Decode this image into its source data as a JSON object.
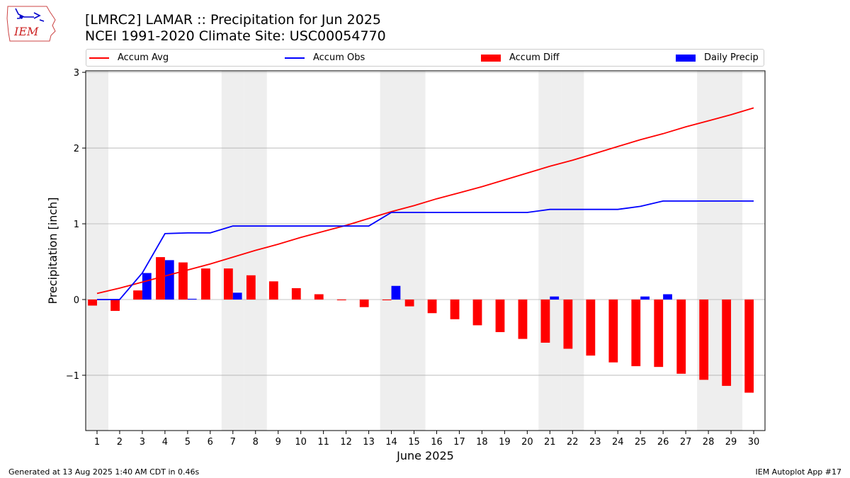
{
  "header": {
    "title_line1": "[LMRC2] LAMAR :: Precipitation for Jun 2025",
    "title_line2": "NCEI 1991-2020 Climate Site: USC00054770",
    "logo_text": "IEM"
  },
  "legend": {
    "accum_avg": "Accum Avg",
    "accum_obs": "Accum Obs",
    "accum_diff": "Accum Diff",
    "daily_precip": "Daily Precip"
  },
  "footer": {
    "generated": "Generated at 13 Aug 2025 1:40 AM CDT in 0.46s",
    "app": "IEM Autoplot App #17"
  },
  "colors": {
    "accum_avg": "#ff0000",
    "accum_obs": "#0000ff",
    "accum_diff": "#ff0000",
    "daily_precip": "#0000ff",
    "weekend_shade": "#eeeeee",
    "grid": "#b0b0b0"
  },
  "chart_data": {
    "type": "bar",
    "title": "[LMRC2] LAMAR :: Precipitation for Jun 2025",
    "subtitle": "NCEI 1991-2020 Climate Site: USC00054770",
    "xlabel": "June 2025",
    "ylabel": "Precipitation [inch]",
    "ylim": [
      -1.73,
      3.02
    ],
    "yticks": [
      -1,
      0,
      1,
      2,
      3
    ],
    "ytick_labels": [
      "−1",
      "0",
      "1",
      "2",
      "3"
    ],
    "xlim": [
      0.5,
      30.5
    ],
    "x": [
      1,
      2,
      3,
      4,
      5,
      6,
      7,
      8,
      9,
      10,
      11,
      12,
      13,
      14,
      15,
      16,
      17,
      18,
      19,
      20,
      21,
      22,
      23,
      24,
      25,
      26,
      27,
      28,
      29,
      30
    ],
    "weekend_days": [
      1,
      7,
      8,
      14,
      15,
      21,
      22,
      28,
      29
    ],
    "grid": true,
    "legend_position": "top",
    "series": [
      {
        "name": "Accum Avg",
        "kind": "line",
        "values": [
          0.08,
          0.15,
          0.23,
          0.31,
          0.39,
          0.47,
          0.56,
          0.65,
          0.73,
          0.82,
          0.9,
          0.98,
          1.07,
          1.16,
          1.24,
          1.33,
          1.41,
          1.49,
          1.58,
          1.67,
          1.76,
          1.84,
          1.93,
          2.02,
          2.11,
          2.19,
          2.28,
          2.36,
          2.44,
          2.53
        ]
      },
      {
        "name": "Accum Obs",
        "kind": "line",
        "values": [
          0.0,
          0.0,
          0.35,
          0.87,
          0.88,
          0.88,
          0.97,
          0.97,
          0.97,
          0.97,
          0.97,
          0.97,
          0.97,
          1.15,
          1.15,
          1.15,
          1.15,
          1.15,
          1.15,
          1.15,
          1.19,
          1.19,
          1.19,
          1.19,
          1.23,
          1.3,
          1.3,
          1.3,
          1.3,
          1.3
        ]
      },
      {
        "name": "Accum Diff",
        "kind": "bar",
        "values": [
          -0.08,
          -0.15,
          0.12,
          0.56,
          0.49,
          0.41,
          0.41,
          0.32,
          0.24,
          0.15,
          0.07,
          -0.01,
          -0.1,
          -0.01,
          -0.09,
          -0.18,
          -0.26,
          -0.34,
          -0.43,
          -0.52,
          -0.57,
          -0.65,
          -0.74,
          -0.83,
          -0.88,
          -0.89,
          -0.98,
          -1.06,
          -1.14,
          -1.23
        ]
      },
      {
        "name": "Daily Precip",
        "kind": "bar",
        "values": [
          0.0,
          0.0,
          0.35,
          0.52,
          0.01,
          0.0,
          0.09,
          0.0,
          0.0,
          0.0,
          0.0,
          0.0,
          0.0,
          0.18,
          0.0,
          0.0,
          0.0,
          0.0,
          0.0,
          0.0,
          0.04,
          0.0,
          0.0,
          0.0,
          0.04,
          0.07,
          0.0,
          0.0,
          0.0,
          0.0
        ]
      }
    ]
  }
}
